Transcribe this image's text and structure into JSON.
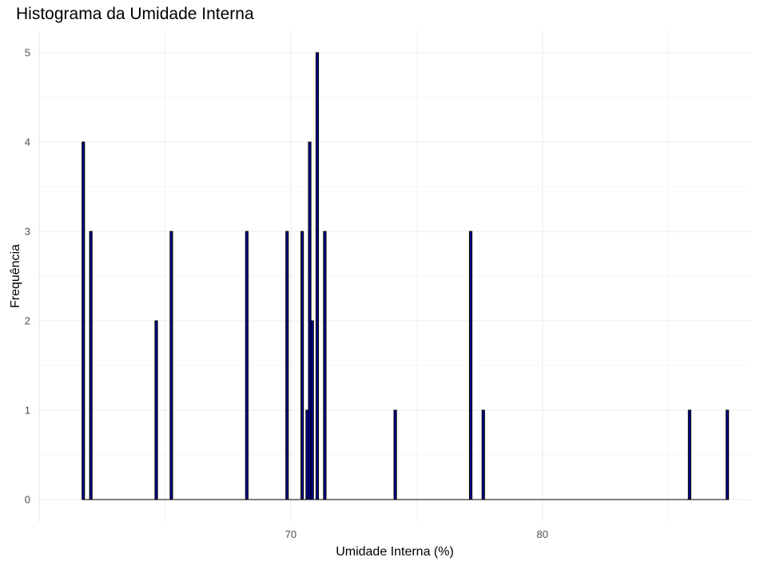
{
  "chart_data": {
    "type": "bar",
    "subtype": "histogram",
    "title": "Histograma da Umidade Interna",
    "xlabel": "Umidade Interna (%)",
    "ylabel": "Frequência",
    "xlim": [
      59.9,
      88.3
    ],
    "ylim": [
      -0.25,
      5.25
    ],
    "xticks": [
      70,
      80
    ],
    "yticks": [
      0,
      1,
      2,
      3,
      4,
      5
    ],
    "grid": true,
    "bin_width": 0.1,
    "colors": {
      "fill": "#00008B",
      "outline": "#000000",
      "grid": "#ebebeb",
      "text": "#4d4d4d"
    },
    "bins": [
      {
        "x": 61.7,
        "count": 4
      },
      {
        "x": 62.0,
        "count": 3
      },
      {
        "x": 64.6,
        "count": 2
      },
      {
        "x": 65.2,
        "count": 3
      },
      {
        "x": 68.2,
        "count": 3
      },
      {
        "x": 69.8,
        "count": 3
      },
      {
        "x": 70.4,
        "count": 3
      },
      {
        "x": 70.6,
        "count": 1
      },
      {
        "x": 70.7,
        "count": 4
      },
      {
        "x": 70.8,
        "count": 2
      },
      {
        "x": 71.0,
        "count": 5
      },
      {
        "x": 71.3,
        "count": 3
      },
      {
        "x": 74.1,
        "count": 1
      },
      {
        "x": 77.1,
        "count": 3
      },
      {
        "x": 77.6,
        "count": 1
      },
      {
        "x": 85.8,
        "count": 1
      },
      {
        "x": 87.3,
        "count": 1
      }
    ]
  }
}
